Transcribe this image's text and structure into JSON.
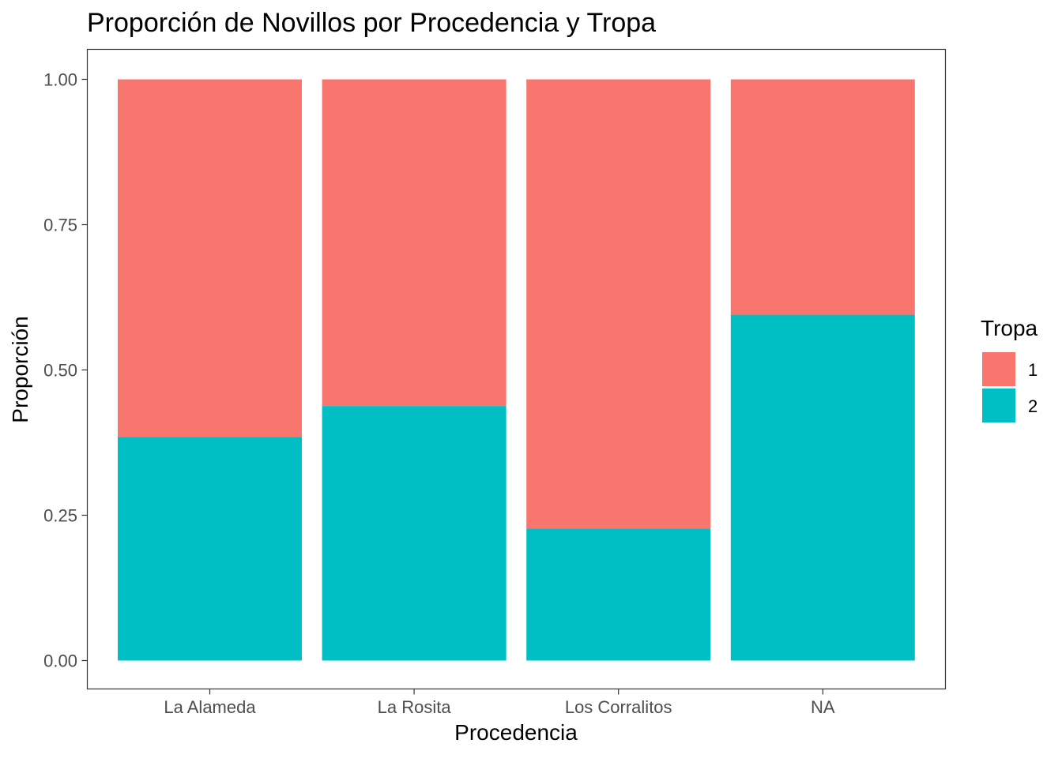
{
  "chart_data": {
    "type": "bar",
    "stacked": true,
    "title": "Proporción de Novillos por Procedencia y Tropa",
    "xlabel": "Procedencia",
    "ylabel": "Proporción",
    "categories": [
      "La Alameda",
      "La Rosita",
      "Los Corralitos",
      "NA"
    ],
    "series": [
      {
        "name": "2",
        "color": "#00BFC4",
        "values": [
          0.385,
          0.438,
          0.227,
          0.595
        ]
      },
      {
        "name": "1",
        "color": "#F8766D",
        "values": [
          0.615,
          0.562,
          0.773,
          0.405
        ]
      }
    ],
    "ylim": [
      0,
      1
    ],
    "yticks": [
      "0.00",
      "0.25",
      "0.50",
      "0.75",
      "1.00"
    ],
    "ytick_values": [
      0,
      0.25,
      0.5,
      0.75,
      1
    ],
    "grid": false,
    "legend": {
      "title": "Tropa",
      "placement": "right",
      "entries": [
        {
          "label": "1",
          "color": "#F8766D"
        },
        {
          "label": "2",
          "color": "#00BFC4"
        }
      ]
    }
  }
}
